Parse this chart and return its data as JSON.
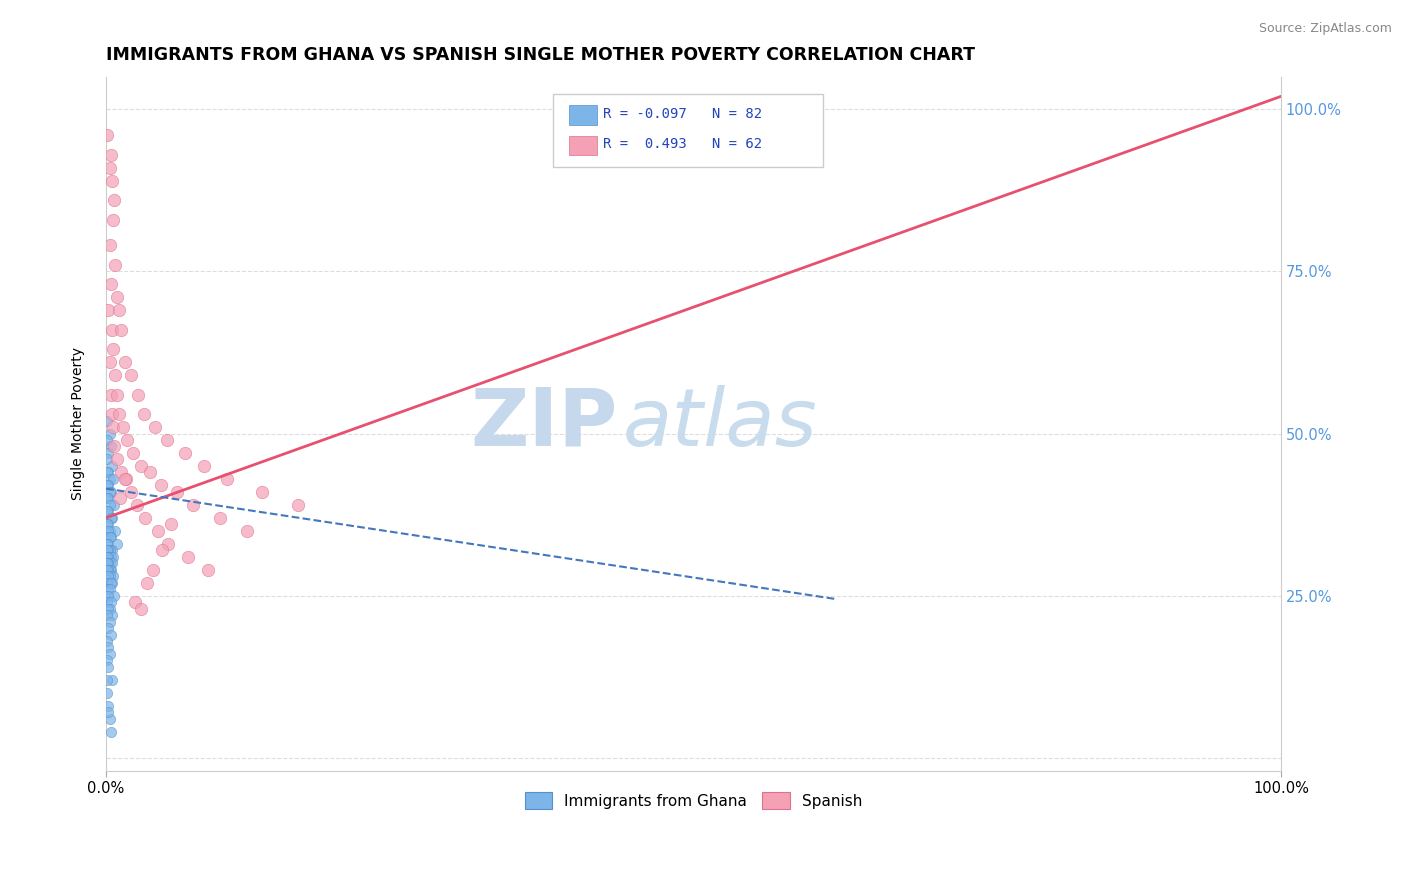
{
  "title": "IMMIGRANTS FROM GHANA VS SPANISH SINGLE MOTHER POVERTY CORRELATION CHART",
  "source": "Source: ZipAtlas.com",
  "ylabel": "Single Mother Poverty",
  "xlim": [
    0.0,
    1.0
  ],
  "ylim": [
    -0.02,
    1.05
  ],
  "xtick_positions": [
    0.0,
    1.0
  ],
  "xticklabels": [
    "0.0%",
    "100.0%"
  ],
  "ytick_positions": [
    0.0,
    0.25,
    0.5,
    0.75,
    1.0
  ],
  "right_yticklabels": [
    "",
    "25.0%",
    "50.0%",
    "75.0%",
    "100.0%"
  ],
  "blue_R": -0.097,
  "blue_N": 82,
  "pink_R": 0.493,
  "pink_N": 62,
  "blue_color": "#7eb5e8",
  "pink_color": "#f4a0b5",
  "blue_edge_color": "#5590cc",
  "pink_edge_color": "#e07090",
  "blue_trend_color": "#4477bb",
  "pink_trend_color": "#e85070",
  "legend_label_blue": "Immigrants from Ghana",
  "legend_label_pink": "Spanish",
  "title_fontsize": 12.5,
  "axis_label_fontsize": 10,
  "tick_fontsize": 10.5,
  "right_tick_color": "#5599dd",
  "background_color": "#ffffff",
  "grid_color": "#dddddd",
  "blue_scatter_x": [
    0.001,
    0.003,
    0.001,
    0.004,
    0.002,
    0.001,
    0.005,
    0.002,
    0.001,
    0.003,
    0.006,
    0.002,
    0.001,
    0.004,
    0.003,
    0.002,
    0.001,
    0.007,
    0.003,
    0.002,
    0.001,
    0.005,
    0.004,
    0.002,
    0.001,
    0.003,
    0.008,
    0.002,
    0.001,
    0.004,
    0.003,
    0.002,
    0.009,
    0.001,
    0.005,
    0.003,
    0.002,
    0.001,
    0.004,
    0.006,
    0.002,
    0.001,
    0.003,
    0.005,
    0.002,
    0.001,
    0.004,
    0.003,
    0.002,
    0.001,
    0.006,
    0.003,
    0.002,
    0.005,
    0.001,
    0.004,
    0.002,
    0.003,
    0.001,
    0.007,
    0.002,
    0.001,
    0.004,
    0.003,
    0.002,
    0.005,
    0.001,
    0.003,
    0.002,
    0.004,
    0.001,
    0.002,
    0.003,
    0.001,
    0.002,
    0.005,
    0.001,
    0.002,
    0.003,
    0.004,
    0.001,
    0.002
  ],
  "blue_scatter_y": [
    0.52,
    0.5,
    0.49,
    0.48,
    0.47,
    0.46,
    0.45,
    0.44,
    0.44,
    0.43,
    0.43,
    0.42,
    0.42,
    0.41,
    0.41,
    0.4,
    0.4,
    0.39,
    0.39,
    0.38,
    0.38,
    0.37,
    0.37,
    0.36,
    0.36,
    0.35,
    0.35,
    0.35,
    0.34,
    0.34,
    0.34,
    0.33,
    0.33,
    0.33,
    0.32,
    0.32,
    0.32,
    0.32,
    0.31,
    0.31,
    0.31,
    0.31,
    0.3,
    0.3,
    0.3,
    0.3,
    0.29,
    0.29,
    0.29,
    0.29,
    0.28,
    0.28,
    0.28,
    0.27,
    0.27,
    0.27,
    0.26,
    0.26,
    0.25,
    0.25,
    0.25,
    0.24,
    0.24,
    0.23,
    0.23,
    0.22,
    0.22,
    0.21,
    0.2,
    0.19,
    0.18,
    0.17,
    0.16,
    0.15,
    0.14,
    0.12,
    0.1,
    0.08,
    0.06,
    0.04,
    0.12,
    0.07
  ],
  "pink_scatter_x": [
    0.001,
    0.003,
    0.004,
    0.005,
    0.007,
    0.003,
    0.006,
    0.004,
    0.002,
    0.008,
    0.005,
    0.003,
    0.009,
    0.006,
    0.004,
    0.011,
    0.008,
    0.005,
    0.013,
    0.009,
    0.006,
    0.016,
    0.011,
    0.007,
    0.021,
    0.014,
    0.009,
    0.027,
    0.018,
    0.013,
    0.032,
    0.023,
    0.017,
    0.042,
    0.03,
    0.021,
    0.052,
    0.037,
    0.026,
    0.067,
    0.047,
    0.033,
    0.083,
    0.06,
    0.044,
    0.103,
    0.074,
    0.053,
    0.133,
    0.097,
    0.07,
    0.163,
    0.12,
    0.087,
    0.048,
    0.035,
    0.025,
    0.055,
    0.04,
    0.03,
    0.012,
    0.016
  ],
  "pink_scatter_y": [
    0.96,
    0.91,
    0.93,
    0.89,
    0.86,
    0.79,
    0.83,
    0.73,
    0.69,
    0.76,
    0.66,
    0.61,
    0.71,
    0.63,
    0.56,
    0.69,
    0.59,
    0.53,
    0.66,
    0.56,
    0.51,
    0.61,
    0.53,
    0.48,
    0.59,
    0.51,
    0.46,
    0.56,
    0.49,
    0.44,
    0.53,
    0.47,
    0.43,
    0.51,
    0.45,
    0.41,
    0.49,
    0.44,
    0.39,
    0.47,
    0.42,
    0.37,
    0.45,
    0.41,
    0.35,
    0.43,
    0.39,
    0.33,
    0.41,
    0.37,
    0.31,
    0.39,
    0.35,
    0.29,
    0.32,
    0.27,
    0.24,
    0.36,
    0.29,
    0.23,
    0.4,
    0.43
  ],
  "blue_trend_x": [
    0.0,
    0.62
  ],
  "blue_trend_y": [
    0.415,
    0.245
  ],
  "pink_trend_x": [
    0.0,
    1.0
  ],
  "pink_trend_y": [
    0.37,
    1.02
  ]
}
